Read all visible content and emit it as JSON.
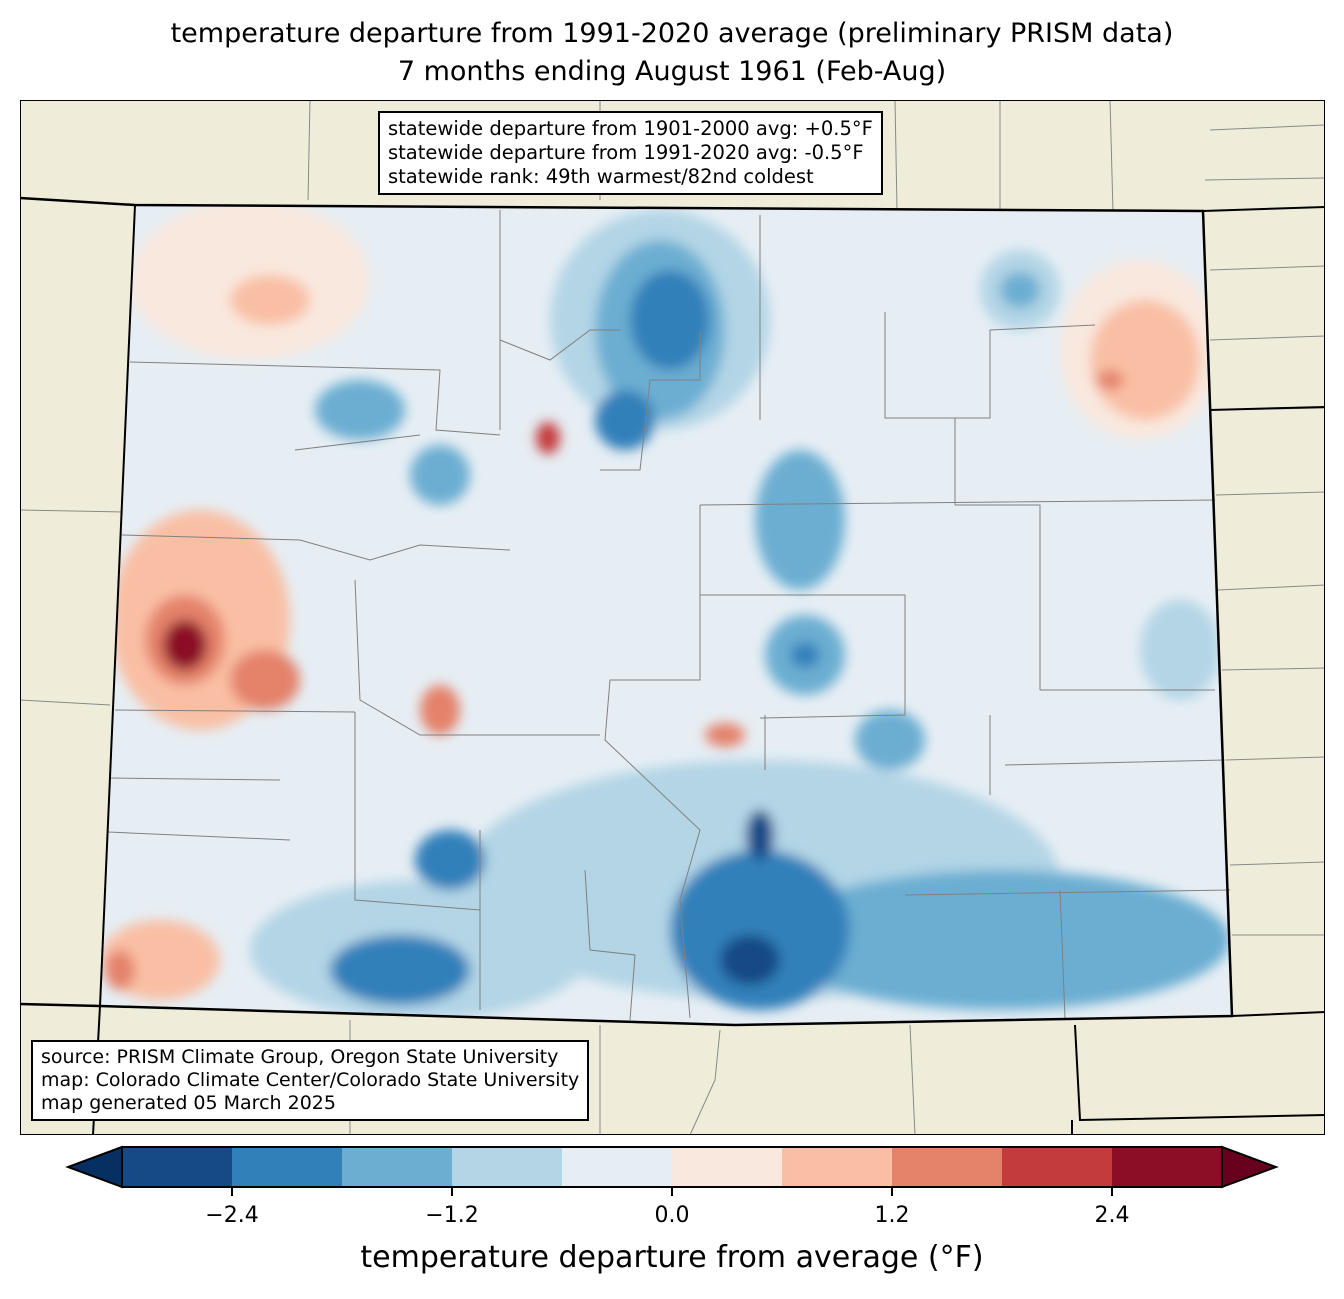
{
  "title": {
    "line1": "temperature departure from 1991-2020 average (preliminary PRISM data)",
    "line2": "7 months ending August 1961 (Feb-Aug)"
  },
  "stats_box": {
    "line1": "statewide departure from 1901-2000 avg: +0.5°F",
    "line2": "statewide departure from 1991-2020 avg: -0.5°F",
    "line3": "statewide rank: 49th warmest/82nd coldest"
  },
  "source_box": {
    "line1": "source: PRISM Climate Group, Oregon State University",
    "line2": "map: Colorado Climate Center/Colorado State University",
    "line3": "map generated 05 March 2025"
  },
  "colorbar": {
    "label": "temperature departure from average (°F)",
    "boundaries": [
      -3.0,
      -2.4,
      -1.8,
      -1.2,
      -0.6,
      0.0,
      0.6,
      1.2,
      1.8,
      2.4,
      3.0
    ],
    "colors": [
      "#154a86",
      "#3280ba",
      "#6caed2",
      "#b3d5e6",
      "#e6eef4",
      "#f9e8de",
      "#f9bfa4",
      "#e4826a",
      "#c43b3b",
      "#8b0d26"
    ],
    "under_color": "#053061",
    "over_color": "#67001f",
    "ticks": [
      "−2.4",
      "−1.2",
      "0.0",
      "1.2",
      "2.4"
    ],
    "tick_values": [
      -2.4,
      -1.2,
      0.0,
      1.2,
      2.4
    ]
  },
  "colors": {
    "land": "#efedda",
    "state_base": "#e6eef4"
  }
}
